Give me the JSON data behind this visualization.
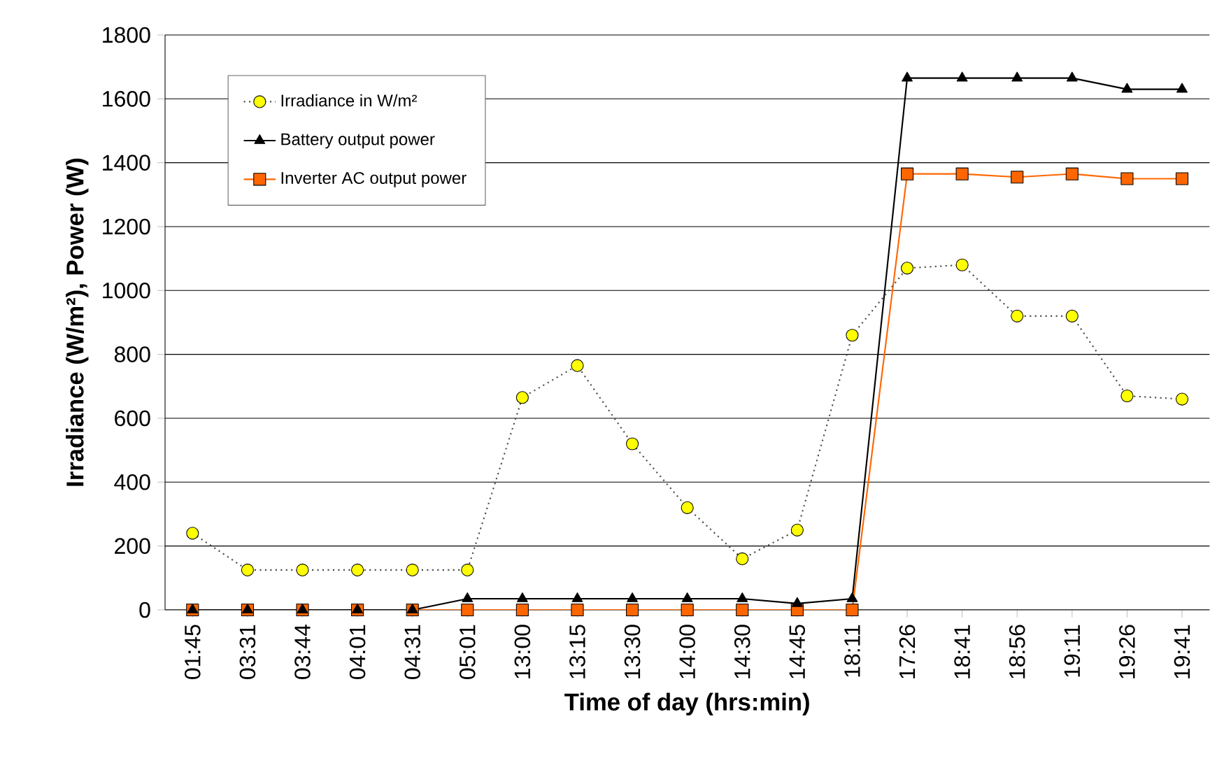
{
  "chart_data": {
    "type": "line",
    "xlabel": "Time of day (hrs:min)",
    "ylabel": "Irradiance (W/m²), Power (W)",
    "categories": [
      "01:45",
      "03:31",
      "03:44",
      "04:01",
      "04:31",
      "05:01",
      "13:00",
      "13:15",
      "13:30",
      "14:00",
      "14:30",
      "14:45",
      "18:11",
      "17:26",
      "18:41",
      "18:56",
      "19:11",
      "19:26",
      "19:41"
    ],
    "series": [
      {
        "name": "Irradiance in W/m²",
        "color": "#ffff00",
        "marker": "circle",
        "line_style": "dotted",
        "values": [
          240,
          125,
          125,
          125,
          125,
          125,
          665,
          765,
          520,
          320,
          160,
          250,
          860,
          1070,
          1080,
          920,
          920,
          670,
          660
        ]
      },
      {
        "name": "Battery output power",
        "color": "#000000",
        "marker": "triangle",
        "line_style": "solid",
        "values": [
          0,
          0,
          0,
          0,
          0,
          35,
          35,
          35,
          35,
          35,
          35,
          20,
          35,
          1665,
          1665,
          1665,
          1665,
          1630,
          1630
        ]
      },
      {
        "name": "Inverter AC output power",
        "color": "#ff6600",
        "marker": "square",
        "line_style": "solid",
        "values": [
          0,
          0,
          0,
          0,
          0,
          0,
          0,
          0,
          0,
          0,
          0,
          0,
          0,
          1365,
          1365,
          1355,
          1365,
          1350,
          1350
        ]
      }
    ],
    "ylim": [
      0,
      1800
    ],
    "yticks": [
      0,
      200,
      400,
      600,
      800,
      1000,
      1200,
      1400,
      1600,
      1800
    ],
    "grid": "y",
    "legend": "top left"
  }
}
